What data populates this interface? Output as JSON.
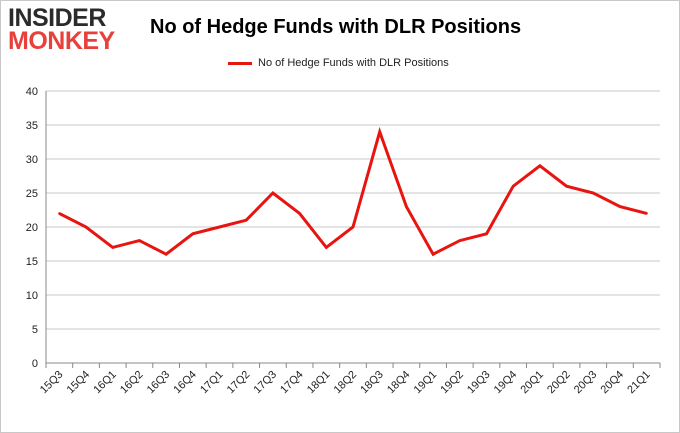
{
  "logo": {
    "line1": "INSIDER",
    "line2": "MONKEY"
  },
  "colors": {
    "series": "#e8140f",
    "grid": "#c8c8c8",
    "axis": "#888888",
    "logo_accent": "#e8403a"
  },
  "chart_data": {
    "type": "line",
    "title": "No of Hedge Funds with DLR Positions",
    "legend_position": "top-center",
    "grid": true,
    "ylim": [
      0,
      40
    ],
    "yticks": [
      0,
      5,
      10,
      15,
      20,
      25,
      30,
      35,
      40
    ],
    "categories": [
      "15Q3",
      "15Q4",
      "16Q1",
      "16Q2",
      "16Q3",
      "16Q4",
      "17Q1",
      "17Q2",
      "17Q3",
      "17Q4",
      "18Q1",
      "18Q2",
      "18Q3",
      "18Q4",
      "19Q1",
      "19Q2",
      "19Q3",
      "19Q4",
      "20Q1",
      "20Q2",
      "20Q3",
      "20Q4",
      "21Q1"
    ],
    "series": [
      {
        "name": "No of Hedge Funds with DLR Positions",
        "values": [
          22,
          20,
          17,
          18,
          16,
          19,
          20,
          21,
          25,
          22,
          17,
          20,
          34,
          23,
          16,
          18,
          19,
          26,
          29,
          26,
          25,
          23,
          22
        ]
      }
    ]
  }
}
